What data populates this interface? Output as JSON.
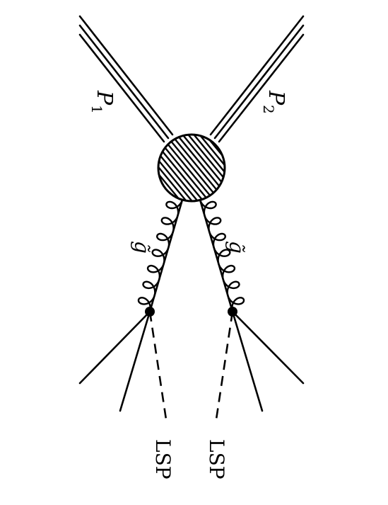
{
  "diagram": {
    "proton_1_label": "P",
    "proton_1_subscript": "1",
    "proton_2_label": "P",
    "proton_2_subscript": "2",
    "gluino_left_label": "g̃",
    "gluino_right_label": "g̃",
    "lsp_left_label": "LSP",
    "lsp_right_label": "LSP",
    "colors": {
      "ink": "#000000",
      "background": "#ffffff"
    }
  }
}
